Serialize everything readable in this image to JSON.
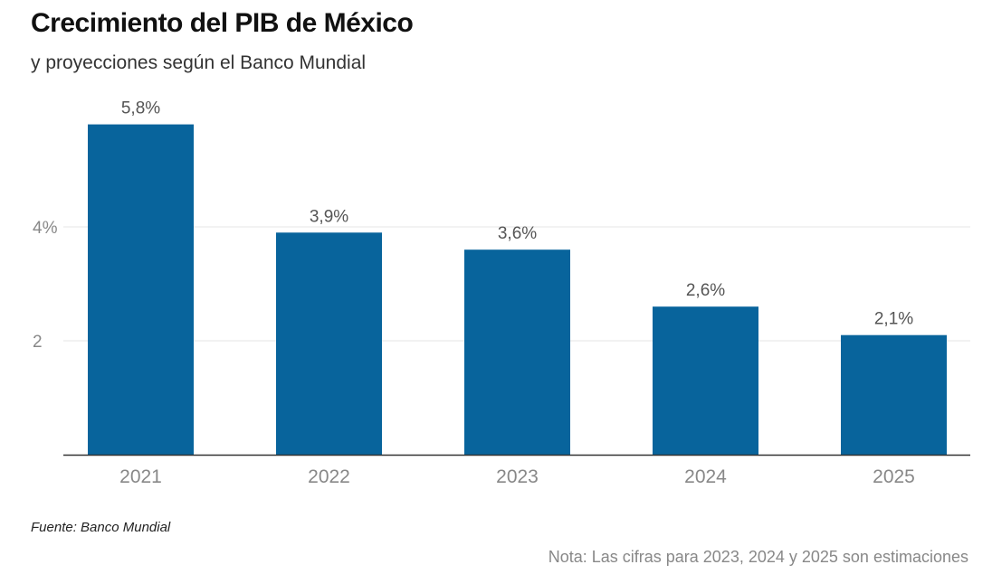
{
  "title": "Crecimiento del PIB de México",
  "subtitle": "y proyecciones según el Banco Mundial",
  "source": "Fuente: Banco Mundial",
  "note": "Nota: Las cifras para 2023, 2024 y 2025 son estimaciones",
  "colors": {
    "bar": "#08649c",
    "grid": "#e6e6e6",
    "axis": "#333333",
    "tick_text": "#888888",
    "label_text": "#555555"
  },
  "chart_data": {
    "type": "bar",
    "categories": [
      "2021",
      "2022",
      "2023",
      "2024",
      "2025"
    ],
    "values": [
      5.8,
      3.9,
      3.6,
      2.6,
      2.1
    ],
    "value_labels": [
      "5,8%",
      "3,9%",
      "3,6%",
      "2,6%",
      "2,1%"
    ],
    "y_ticks": [
      {
        "value": 2,
        "label": "2"
      },
      {
        "value": 4,
        "label": "4%"
      }
    ],
    "ylim": [
      0,
      5.8
    ],
    "grid": true,
    "title": "Crecimiento del PIB de México",
    "subtitle": "y proyecciones según el Banco Mundial",
    "xlabel": "",
    "ylabel": ""
  }
}
